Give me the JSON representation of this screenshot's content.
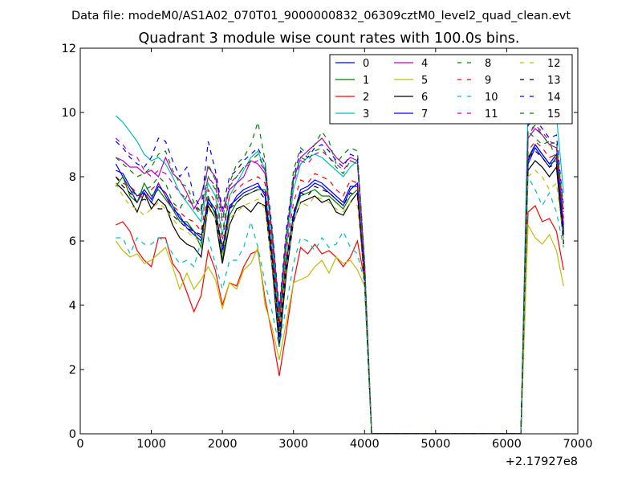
{
  "header": {
    "datafile": "Data file: modeM0/AS1A02_070T01_9000000832_06309cztM0_level2_quad_clean.evt"
  },
  "chart_data": {
    "type": "line",
    "title": "Quadrant 3 module wise count rates with 100.0s bins.",
    "xlabel": "",
    "ylabel": "",
    "xlim": [
      0,
      7000
    ],
    "ylim": [
      0,
      12
    ],
    "x_offset_label": "+2.17927e8",
    "xticks": [
      "0",
      "1000",
      "2000",
      "3000",
      "4000",
      "5000",
      "6000",
      "7000"
    ],
    "yticks": [
      "0",
      "2",
      "4",
      "6",
      "8",
      "10",
      "12"
    ],
    "grid": false,
    "legend_placement": "top-right",
    "x": [
      500,
      600,
      700,
      800,
      900,
      1000,
      1100,
      1200,
      1300,
      1400,
      1500,
      1600,
      1700,
      1800,
      1900,
      2000,
      2100,
      2200,
      2300,
      2400,
      2500,
      2600,
      2700,
      2800,
      2900,
      3000,
      3100,
      3200,
      3300,
      3400,
      3500,
      3600,
      3700,
      3800,
      3900,
      4000,
      4100,
      4200,
      4300,
      4400,
      4500,
      4600,
      4700,
      4800,
      4900,
      5000,
      5100,
      5200,
      5300,
      5400,
      5500,
      5600,
      5700,
      5800,
      5900,
      6000,
      6100,
      6200,
      6300,
      6400,
      6500,
      6600,
      6700,
      6800
    ],
    "series": [
      {
        "name": "0",
        "color": "#0000ff",
        "dash": false,
        "values": [
          8.4,
          8.0,
          7.6,
          7.2,
          7.6,
          7.3,
          7.8,
          7.4,
          7.0,
          6.8,
          6.4,
          6.2,
          6.0,
          7.2,
          6.9,
          5.6,
          7.0,
          7.4,
          7.6,
          7.7,
          7.8,
          7.4,
          5.4,
          3.0,
          5.2,
          6.7,
          7.5,
          7.6,
          7.8,
          7.7,
          7.5,
          7.3,
          7.1,
          7.6,
          7.8,
          4.8,
          0,
          0,
          0,
          0,
          0,
          0,
          0,
          0,
          0,
          0,
          0,
          0,
          0,
          0,
          0,
          0,
          0,
          0,
          0,
          0,
          0,
          0,
          8.4,
          8.9,
          8.6,
          8.3,
          8.6,
          6.2
        ]
      },
      {
        "name": "1",
        "color": "#008000",
        "dash": false,
        "values": [
          7.7,
          8.0,
          7.4,
          7.2,
          7.8,
          7.4,
          7.6,
          7.3,
          7.0,
          6.6,
          6.6,
          6.3,
          5.8,
          7.4,
          6.8,
          5.4,
          6.8,
          7.2,
          7.4,
          7.5,
          7.6,
          7.6,
          5.6,
          3.2,
          5.4,
          6.8,
          7.4,
          7.5,
          7.6,
          7.4,
          7.4,
          7.2,
          7.0,
          7.4,
          7.6,
          4.9,
          0,
          0,
          0,
          0,
          0,
          0,
          0,
          0,
          0,
          0,
          0,
          0,
          0,
          0,
          0,
          0,
          0,
          0,
          0,
          0,
          0,
          0,
          8.6,
          9.0,
          8.7,
          8.4,
          8.5,
          6.4
        ]
      },
      {
        "name": "2",
        "color": "#ff0000",
        "dash": false,
        "values": [
          6.5,
          6.6,
          6.3,
          5.7,
          5.4,
          5.2,
          6.1,
          6.1,
          5.3,
          5.0,
          4.4,
          3.8,
          4.3,
          5.7,
          5.1,
          4.0,
          4.7,
          4.6,
          5.2,
          5.6,
          5.7,
          4.2,
          3.1,
          1.8,
          3.2,
          4.7,
          5.8,
          5.6,
          5.9,
          5.6,
          5.7,
          5.5,
          5.2,
          5.5,
          6.0,
          4.8,
          0,
          0,
          0,
          0,
          0,
          0,
          0,
          0,
          0,
          0,
          0,
          0,
          0,
          0,
          0,
          0,
          0,
          0,
          0,
          0,
          0,
          0,
          6.9,
          7.1,
          6.6,
          6.7,
          6.3,
          5.1
        ]
      },
      {
        "name": "3",
        "color": "#00bfbf",
        "dash": false,
        "values": [
          9.9,
          9.7,
          9.4,
          9.1,
          8.7,
          8.5,
          8.6,
          8.4,
          8.0,
          7.5,
          7.2,
          6.9,
          6.6,
          7.8,
          7.4,
          6.2,
          7.4,
          7.8,
          8.2,
          8.6,
          8.8,
          8.2,
          6.0,
          3.4,
          5.8,
          7.6,
          8.4,
          8.6,
          8.7,
          8.6,
          8.4,
          8.2,
          8.0,
          8.3,
          8.5,
          5.2,
          0,
          0,
          0,
          0,
          0,
          0,
          0,
          0,
          0,
          0,
          0,
          0,
          0,
          0,
          0,
          0,
          0,
          0,
          0,
          0,
          0,
          0,
          10.2,
          10.1,
          10.1,
          10.0,
          9.9,
          7.5
        ]
      },
      {
        "name": "4",
        "color": "#bf00bf",
        "dash": false,
        "values": [
          8.6,
          8.5,
          8.3,
          8.3,
          8.1,
          8.2,
          8.0,
          8.6,
          8.1,
          7.9,
          7.5,
          7.0,
          7.4,
          8.3,
          8.0,
          6.9,
          7.6,
          7.8,
          8.0,
          8.5,
          8.4,
          8.1,
          6.3,
          3.8,
          6.2,
          7.9,
          8.6,
          8.8,
          9.0,
          9.2,
          8.9,
          8.6,
          8.4,
          8.6,
          8.5,
          5.3,
          0,
          0,
          0,
          0,
          0,
          0,
          0,
          0,
          0,
          0,
          0,
          0,
          0,
          0,
          0,
          0,
          0,
          0,
          0,
          0,
          0,
          0,
          9.2,
          9.5,
          9.3,
          9.0,
          8.9,
          6.5
        ]
      },
      {
        "name": "5",
        "color": "#bfbf00",
        "dash": false,
        "values": [
          6.0,
          5.7,
          5.5,
          5.6,
          5.3,
          5.4,
          5.6,
          5.8,
          5.2,
          4.5,
          5.0,
          4.5,
          4.8,
          5.2,
          4.8,
          3.9,
          4.7,
          4.5,
          5.1,
          5.3,
          5.8,
          4.0,
          3.3,
          2.3,
          3.5,
          4.7,
          4.8,
          4.9,
          5.2,
          5.4,
          5.0,
          5.5,
          5.3,
          5.4,
          5.1,
          4.6,
          0,
          0,
          0,
          0,
          0,
          0,
          0,
          0,
          0,
          0,
          0,
          0,
          0,
          0,
          0,
          0,
          0,
          0,
          0,
          0,
          0,
          0,
          6.5,
          6.1,
          5.9,
          6.2,
          5.7,
          4.6
        ]
      },
      {
        "name": "6",
        "color": "#000000",
        "dash": false,
        "values": [
          7.8,
          7.6,
          7.3,
          6.9,
          7.5,
          7.0,
          7.3,
          7.1,
          6.5,
          6.1,
          5.9,
          5.8,
          5.5,
          7.1,
          6.7,
          5.3,
          6.5,
          7.0,
          7.1,
          6.9,
          7.2,
          7.1,
          5.2,
          2.7,
          5.0,
          6.6,
          7.2,
          7.3,
          7.4,
          7.2,
          7.3,
          6.9,
          6.8,
          7.2,
          7.5,
          4.7,
          0,
          0,
          0,
          0,
          0,
          0,
          0,
          0,
          0,
          0,
          0,
          0,
          0,
          0,
          0,
          0,
          0,
          0,
          0,
          0,
          0,
          0,
          8.2,
          8.5,
          8.3,
          8.0,
          8.3,
          6.0
        ]
      },
      {
        "name": "7",
        "color": "#0000ff",
        "dash": false,
        "values": [
          8.2,
          8.1,
          7.7,
          7.4,
          7.5,
          7.2,
          7.7,
          7.5,
          7.1,
          6.7,
          6.5,
          6.3,
          6.1,
          7.3,
          7.0,
          5.7,
          7.1,
          7.3,
          7.5,
          7.6,
          7.7,
          7.5,
          5.5,
          3.1,
          5.3,
          6.8,
          7.6,
          7.7,
          7.9,
          7.8,
          7.6,
          7.4,
          7.2,
          7.7,
          7.7,
          4.9,
          0,
          0,
          0,
          0,
          0,
          0,
          0,
          0,
          0,
          0,
          0,
          0,
          0,
          0,
          0,
          0,
          0,
          0,
          0,
          0,
          0,
          0,
          8.5,
          9.0,
          8.7,
          8.4,
          8.7,
          6.3
        ]
      },
      {
        "name": "8",
        "color": "#008000",
        "dash": true,
        "values": [
          7.7,
          8.0,
          7.6,
          7.4,
          7.6,
          7.7,
          8.0,
          7.8,
          7.2,
          7.0,
          7.4,
          7.1,
          6.8,
          8.0,
          7.6,
          6.2,
          7.8,
          8.4,
          8.6,
          9.0,
          9.7,
          8.5,
          6.0,
          3.6,
          6.0,
          8.2,
          8.9,
          8.7,
          9.0,
          9.4,
          9.1,
          8.4,
          8.7,
          8.9,
          8.8,
          5.3,
          0,
          0,
          0,
          0,
          0,
          0,
          0,
          0,
          0,
          0,
          0,
          0,
          0,
          0,
          0,
          0,
          0,
          0,
          0,
          0,
          0,
          0,
          9.4,
          9.2,
          9.0,
          9.1,
          8.5,
          7.2
        ]
      },
      {
        "name": "9",
        "color": "#ff0000",
        "dash": true,
        "values": [
          8.0,
          7.8,
          7.7,
          7.5,
          7.3,
          7.6,
          7.8,
          7.4,
          7.1,
          6.9,
          6.7,
          6.6,
          6.3,
          7.6,
          7.2,
          6.0,
          7.4,
          7.6,
          7.8,
          7.9,
          8.0,
          7.8,
          5.8,
          3.4,
          5.7,
          7.2,
          7.9,
          7.8,
          8.1,
          8.0,
          7.9,
          7.6,
          7.4,
          7.9,
          7.8,
          5.0,
          0,
          0,
          0,
          0,
          0,
          0,
          0,
          0,
          0,
          0,
          0,
          0,
          0,
          0,
          0,
          0,
          0,
          0,
          0,
          0,
          0,
          0,
          8.8,
          9.1,
          8.9,
          8.6,
          8.7,
          6.7
        ]
      },
      {
        "name": "10",
        "color": "#00bfbf",
        "dash": true,
        "values": [
          6.1,
          6.1,
          5.6,
          6.1,
          5.9,
          5.9,
          6.1,
          6.0,
          5.6,
          5.3,
          5.4,
          5.2,
          6.0,
          6.1,
          5.3,
          4.5,
          5.4,
          5.4,
          5.8,
          6.6,
          5.8,
          4.7,
          3.8,
          2.7,
          4.0,
          5.3,
          6.1,
          6.0,
          5.7,
          6.1,
          5.8,
          5.9,
          6.3,
          5.8,
          5.6,
          4.7,
          0,
          0,
          0,
          0,
          0,
          0,
          0,
          0,
          0,
          0,
          0,
          0,
          0,
          0,
          0,
          0,
          0,
          0,
          0,
          0,
          0,
          0,
          8.0,
          7.6,
          7.1,
          7.5,
          6.9,
          5.8
        ]
      },
      {
        "name": "11",
        "color": "#bf00bf",
        "dash": true,
        "values": [
          9.2,
          9.0,
          8.7,
          8.6,
          8.2,
          8.0,
          8.2,
          8.1,
          7.8,
          7.5,
          7.3,
          7.1,
          6.9,
          8.0,
          7.7,
          6.6,
          7.8,
          8.0,
          8.3,
          8.4,
          8.5,
          8.2,
          6.2,
          3.7,
          6.1,
          7.8,
          8.5,
          8.4,
          8.7,
          8.8,
          8.6,
          8.4,
          8.2,
          8.5,
          8.4,
          5.2,
          0,
          0,
          0,
          0,
          0,
          0,
          0,
          0,
          0,
          0,
          0,
          0,
          0,
          0,
          0,
          0,
          0,
          0,
          0,
          0,
          0,
          0,
          9.3,
          9.6,
          9.4,
          9.1,
          9.0,
          6.9
        ]
      },
      {
        "name": "12",
        "color": "#bfbf00",
        "dash": true,
        "values": [
          7.8,
          7.4,
          7.1,
          7.0,
          6.8,
          7.0,
          7.2,
          7.0,
          6.7,
          6.4,
          6.3,
          6.1,
          6.0,
          7.0,
          6.7,
          5.6,
          6.7,
          6.9,
          7.1,
          7.2,
          7.3,
          7.0,
          5.3,
          3.1,
          5.2,
          6.6,
          7.2,
          7.1,
          7.4,
          7.3,
          7.2,
          7.0,
          6.9,
          7.2,
          7.1,
          4.8,
          0,
          0,
          0,
          0,
          0,
          0,
          0,
          0,
          0,
          0,
          0,
          0,
          0,
          0,
          0,
          0,
          0,
          0,
          0,
          0,
          0,
          0,
          8.0,
          8.2,
          8.0,
          7.6,
          7.8,
          6.0
        ]
      },
      {
        "name": "13",
        "color": "#000000",
        "dash": true,
        "values": [
          8.0,
          7.7,
          7.5,
          7.2,
          7.3,
          7.2,
          7.0,
          7.0,
          6.8,
          6.6,
          6.4,
          6.3,
          6.2,
          7.2,
          6.9,
          5.8,
          7.0,
          7.2,
          7.4,
          7.5,
          7.6,
          7.3,
          5.5,
          3.2,
          5.4,
          6.9,
          7.5,
          7.4,
          7.7,
          7.6,
          7.5,
          7.3,
          7.1,
          7.5,
          7.4,
          4.9,
          0,
          0,
          0,
          0,
          0,
          0,
          0,
          0,
          0,
          0,
          0,
          0,
          0,
          0,
          0,
          0,
          0,
          0,
          0,
          0,
          0,
          0,
          8.6,
          8.8,
          8.6,
          8.3,
          8.4,
          5.9
        ]
      },
      {
        "name": "14",
        "color": "#0000ff",
        "dash": true,
        "values": [
          9.1,
          8.9,
          8.6,
          8.4,
          8.3,
          8.6,
          9.2,
          9.1,
          8.5,
          8.0,
          8.3,
          7.4,
          7.0,
          9.1,
          8.2,
          7.0,
          8.0,
          8.2,
          8.5,
          8.7,
          8.9,
          8.4,
          6.4,
          3.9,
          6.4,
          8.0,
          8.8,
          8.6,
          8.9,
          9.0,
          8.8,
          8.5,
          8.3,
          8.7,
          8.6,
          5.4,
          0,
          0,
          0,
          0,
          0,
          0,
          0,
          0,
          0,
          0,
          0,
          0,
          0,
          0,
          0,
          0,
          0,
          0,
          0,
          0,
          0,
          0,
          9.6,
          9.8,
          9.5,
          9.2,
          9.3,
          7.0
        ]
      },
      {
        "name": "15",
        "color": "#008000",
        "dash": true,
        "values": [
          8.6,
          8.4,
          8.2,
          8.0,
          8.1,
          8.3,
          8.7,
          8.8,
          8.2,
          7.8,
          7.7,
          7.2,
          6.9,
          8.4,
          7.9,
          6.7,
          7.7,
          8.0,
          8.3,
          8.5,
          8.7,
          8.2,
          6.2,
          3.7,
          6.2,
          7.9,
          8.6,
          8.5,
          8.8,
          8.9,
          8.6,
          8.3,
          8.1,
          8.5,
          8.4,
          5.3,
          0,
          0,
          0,
          0,
          0,
          0,
          0,
          0,
          0,
          0,
          0,
          0,
          0,
          0,
          0,
          0,
          0,
          0,
          0,
          0,
          0,
          0,
          9.4,
          9.6,
          9.3,
          9.0,
          9.1,
          6.9
        ]
      }
    ]
  }
}
